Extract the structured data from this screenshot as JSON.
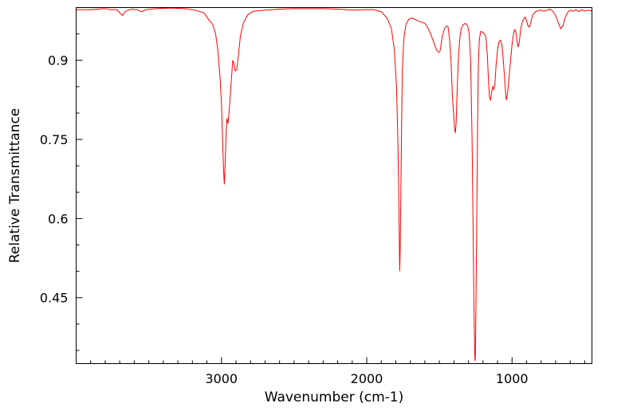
{
  "chart_data": {
    "type": "line",
    "title": "",
    "xlabel": "Wavenumber (cm-1)",
    "ylabel": "Relative Transmittance",
    "xlim": [
      4000,
      450
    ],
    "ylim": [
      0.325,
      1.0
    ],
    "x_ticks": [
      3000,
      2000,
      1000
    ],
    "y_ticks": [
      0.45,
      0.6,
      0.75,
      0.9
    ],
    "x_minor_step": 100,
    "y_minor_step": 0.05,
    "grid": false,
    "legend": "none",
    "series": [
      {
        "color": "#ff0000",
        "points": [
          [
            4000,
            0.996
          ],
          [
            3900,
            0.996
          ],
          [
            3850,
            0.997
          ],
          [
            3800,
            0.998
          ],
          [
            3760,
            0.996
          ],
          [
            3720,
            0.996
          ],
          [
            3700,
            0.99
          ],
          [
            3680,
            0.985
          ],
          [
            3660,
            0.993
          ],
          [
            3620,
            0.997
          ],
          [
            3580,
            0.996
          ],
          [
            3550,
            0.992
          ],
          [
            3520,
            0.996
          ],
          [
            3450,
            0.998
          ],
          [
            3350,
            0.999
          ],
          [
            3250,
            0.998
          ],
          [
            3180,
            0.995
          ],
          [
            3120,
            0.99
          ],
          [
            3090,
            0.978
          ],
          [
            3060,
            0.968
          ],
          [
            3040,
            0.95
          ],
          [
            3025,
            0.92
          ],
          [
            3010,
            0.87
          ],
          [
            3000,
            0.82
          ],
          [
            2992,
            0.75
          ],
          [
            2985,
            0.69
          ],
          [
            2980,
            0.665
          ],
          [
            2975,
            0.7
          ],
          [
            2968,
            0.76
          ],
          [
            2962,
            0.79
          ],
          [
            2955,
            0.78
          ],
          [
            2948,
            0.8
          ],
          [
            2940,
            0.83
          ],
          [
            2930,
            0.87
          ],
          [
            2922,
            0.9
          ],
          [
            2915,
            0.895
          ],
          [
            2905,
            0.88
          ],
          [
            2895,
            0.882
          ],
          [
            2885,
            0.905
          ],
          [
            2870,
            0.945
          ],
          [
            2850,
            0.97
          ],
          [
            2820,
            0.986
          ],
          [
            2780,
            0.993
          ],
          [
            2700,
            0.995
          ],
          [
            2600,
            0.997
          ],
          [
            2500,
            0.998
          ],
          [
            2400,
            0.998
          ],
          [
            2300,
            0.998
          ],
          [
            2200,
            0.997
          ],
          [
            2100,
            0.995
          ],
          [
            2000,
            0.996
          ],
          [
            1950,
            0.996
          ],
          [
            1900,
            0.992
          ],
          [
            1860,
            0.98
          ],
          [
            1830,
            0.96
          ],
          [
            1810,
            0.92
          ],
          [
            1795,
            0.85
          ],
          [
            1785,
            0.74
          ],
          [
            1780,
            0.65
          ],
          [
            1776,
            0.56
          ],
          [
            1773,
            0.5
          ],
          [
            1770,
            0.54
          ],
          [
            1765,
            0.65
          ],
          [
            1760,
            0.78
          ],
          [
            1755,
            0.88
          ],
          [
            1745,
            0.94
          ],
          [
            1730,
            0.968
          ],
          [
            1710,
            0.978
          ],
          [
            1690,
            0.98
          ],
          [
            1670,
            0.978
          ],
          [
            1650,
            0.975
          ],
          [
            1620,
            0.972
          ],
          [
            1600,
            0.97
          ],
          [
            1580,
            0.962
          ],
          [
            1560,
            0.95
          ],
          [
            1540,
            0.935
          ],
          [
            1520,
            0.92
          ],
          [
            1505,
            0.915
          ],
          [
            1495,
            0.918
          ],
          [
            1480,
            0.945
          ],
          [
            1465,
            0.96
          ],
          [
            1450,
            0.965
          ],
          [
            1440,
            0.963
          ],
          [
            1430,
            0.94
          ],
          [
            1420,
            0.9
          ],
          [
            1410,
            0.83
          ],
          [
            1400,
            0.79
          ],
          [
            1395,
            0.77
          ],
          [
            1390,
            0.762
          ],
          [
            1385,
            0.78
          ],
          [
            1378,
            0.84
          ],
          [
            1370,
            0.9
          ],
          [
            1360,
            0.94
          ],
          [
            1350,
            0.96
          ],
          [
            1335,
            0.968
          ],
          [
            1320,
            0.97
          ],
          [
            1305,
            0.965
          ],
          [
            1295,
            0.95
          ],
          [
            1285,
            0.9
          ],
          [
            1275,
            0.75
          ],
          [
            1268,
            0.58
          ],
          [
            1262,
            0.43
          ],
          [
            1258,
            0.36
          ],
          [
            1255,
            0.33
          ],
          [
            1252,
            0.34
          ],
          [
            1248,
            0.45
          ],
          [
            1242,
            0.62
          ],
          [
            1237,
            0.78
          ],
          [
            1232,
            0.89
          ],
          [
            1225,
            0.94
          ],
          [
            1215,
            0.955
          ],
          [
            1200,
            0.953
          ],
          [
            1190,
            0.95
          ],
          [
            1180,
            0.945
          ],
          [
            1170,
            0.91
          ],
          [
            1162,
            0.86
          ],
          [
            1155,
            0.83
          ],
          [
            1148,
            0.825
          ],
          [
            1140,
            0.84
          ],
          [
            1132,
            0.85
          ],
          [
            1125,
            0.845
          ],
          [
            1118,
            0.855
          ],
          [
            1110,
            0.89
          ],
          [
            1100,
            0.92
          ],
          [
            1090,
            0.935
          ],
          [
            1080,
            0.938
          ],
          [
            1070,
            0.93
          ],
          [
            1060,
            0.9
          ],
          [
            1050,
            0.86
          ],
          [
            1042,
            0.83
          ],
          [
            1038,
            0.825
          ],
          [
            1030,
            0.84
          ],
          [
            1020,
            0.87
          ],
          [
            1010,
            0.9
          ],
          [
            1000,
            0.93
          ],
          [
            990,
            0.95
          ],
          [
            982,
            0.958
          ],
          [
            975,
            0.955
          ],
          [
            965,
            0.935
          ],
          [
            958,
            0.925
          ],
          [
            950,
            0.935
          ],
          [
            940,
            0.96
          ],
          [
            930,
            0.972
          ],
          [
            920,
            0.978
          ],
          [
            910,
            0.982
          ],
          [
            900,
            0.975
          ],
          [
            890,
            0.965
          ],
          [
            880,
            0.963
          ],
          [
            870,
            0.972
          ],
          [
            860,
            0.985
          ],
          [
            840,
            0.992
          ],
          [
            820,
            0.994
          ],
          [
            800,
            0.995
          ],
          [
            780,
            0.993
          ],
          [
            760,
            0.995
          ],
          [
            740,
            0.997
          ],
          [
            720,
            0.993
          ],
          [
            700,
            0.985
          ],
          [
            680,
            0.97
          ],
          [
            665,
            0.96
          ],
          [
            650,
            0.965
          ],
          [
            635,
            0.98
          ],
          [
            620,
            0.99
          ],
          [
            600,
            0.995
          ],
          [
            580,
            0.993
          ],
          [
            560,
            0.996
          ],
          [
            540,
            0.992
          ],
          [
            520,
            0.996
          ],
          [
            500,
            0.993
          ],
          [
            480,
            0.995
          ],
          [
            460,
            0.994
          ],
          [
            450,
            0.994
          ]
        ]
      }
    ]
  }
}
